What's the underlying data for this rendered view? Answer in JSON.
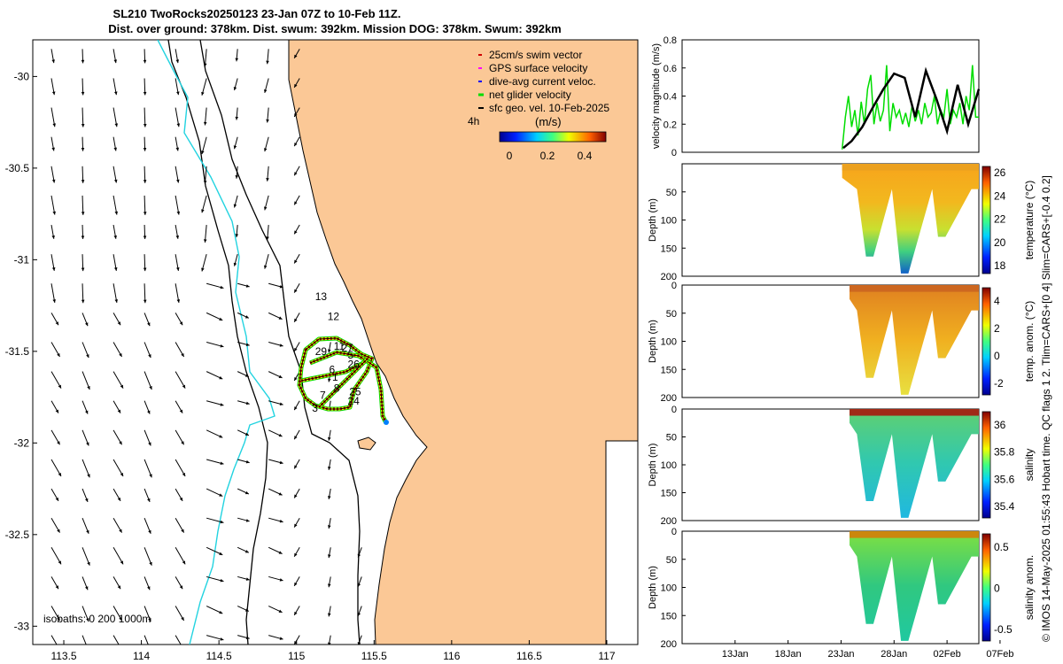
{
  "header": {
    "title_line1": "SL210 TwoRocks20250123 23-Jan 07Z to 10-Feb 11Z.",
    "title_line2": "Dist. over ground: 378km. Dist. swum: 392km. Mission DOG: 378km. Swum: 392km"
  },
  "colors": {
    "land": "#fbc896",
    "isobath": "#000000",
    "shelf": "#22d3e0",
    "track": "#c00000",
    "arrow": "#000000"
  },
  "chart_data": [
    {
      "type": "map",
      "title": "Glider track and surface geostrophic velocity",
      "xlim": [
        113.3,
        117.2
      ],
      "ylim": [
        -33.1,
        -29.8
      ],
      "xticks": [
        113.5,
        114,
        114.5,
        115,
        115.5,
        116,
        116.5,
        117
      ],
      "xtick_labels": [
        "113.5",
        "114",
        "114.5",
        "115",
        "115.5",
        "116",
        "116.5",
        "117"
      ],
      "yticks": [
        -30,
        -30.5,
        -31,
        -31.5,
        -32,
        -32.5,
        -33
      ],
      "ytick_labels": [
        "-30",
        "-30.5",
        "-31",
        "-31.5",
        "-32",
        "-32.5",
        "-33"
      ],
      "legend": [
        "25cm/s swim vector",
        "GPS surface velocity",
        "dive-avg current veloc.",
        "net glider velocity",
        "sfc geo. vel. 10-Feb-2025"
      ],
      "legend_colors": [
        "#d00000",
        "#ff00ff",
        "#0000ff",
        "#00dd00",
        "#000000"
      ],
      "legend_extra": "4h",
      "colorbar_label": "(m/s)",
      "colorbar_ticks": [
        "0",
        "0.2",
        "0.4"
      ],
      "isobaths_label": "isobaths: 0   200  1000m",
      "day_labels": [
        {
          "t": "13",
          "lon": 115.12,
          "lat": -31.22
        },
        {
          "t": "12",
          "lon": 115.2,
          "lat": -31.33
        },
        {
          "t": "29",
          "lon": 115.12,
          "lat": -31.52
        },
        {
          "t": "11",
          "lon": 115.24,
          "lat": -31.49
        },
        {
          "t": "27",
          "lon": 115.29,
          "lat": -31.5
        },
        {
          "t": "5",
          "lon": 115.33,
          "lat": -31.54
        },
        {
          "t": "26",
          "lon": 115.33,
          "lat": -31.59
        },
        {
          "t": "6",
          "lon": 115.21,
          "lat": -31.62
        },
        {
          "t": "1",
          "lon": 115.23,
          "lat": -31.66
        },
        {
          "t": "8",
          "lon": 115.24,
          "lat": -31.72
        },
        {
          "t": "25",
          "lon": 115.34,
          "lat": -31.74
        },
        {
          "t": "7",
          "lon": 115.15,
          "lat": -31.76
        },
        {
          "t": "24",
          "lon": 115.33,
          "lat": -31.79
        },
        {
          "t": "3",
          "lon": 115.1,
          "lat": -31.83
        }
      ]
    },
    {
      "type": "line",
      "ylabel": "velocity magnitude (m/s)",
      "xlim": [
        8,
        36
      ],
      "ylim": [
        0,
        0.8
      ],
      "yticks": [
        0,
        0.2,
        0.4,
        0.6,
        0.8
      ],
      "ytick_labels": [
        "0",
        "0.2",
        "0.4",
        "0.6",
        "0.8"
      ],
      "series": [
        {
          "name": "net glider velocity",
          "color": "#00dd00",
          "x": [
            23.1,
            23.4,
            23.7,
            24.0,
            24.3,
            24.6,
            24.9,
            25.2,
            25.5,
            25.8,
            26.1,
            26.4,
            26.7,
            27.0,
            27.3,
            27.6,
            27.9,
            28.2,
            28.5,
            28.8,
            29.1,
            29.4,
            29.7,
            30.0,
            30.3,
            30.6,
            30.9,
            31.2,
            31.5,
            31.8,
            32.1,
            32.4,
            32.7,
            33.0,
            33.3,
            33.6,
            33.9,
            34.2,
            34.5,
            34.8,
            35.1,
            35.4,
            35.7,
            36.0
          ],
          "y": [
            0.02,
            0.25,
            0.4,
            0.18,
            0.3,
            0.12,
            0.36,
            0.2,
            0.45,
            0.55,
            0.2,
            0.35,
            0.22,
            0.3,
            0.62,
            0.15,
            0.35,
            0.25,
            0.3,
            0.2,
            0.28,
            0.18,
            0.33,
            0.22,
            0.3,
            0.2,
            0.35,
            0.25,
            0.28,
            0.4,
            0.2,
            0.3,
            0.25,
            0.45,
            0.2,
            0.3,
            0.25,
            0.35,
            0.2,
            0.4,
            0.3,
            0.62,
            0.25,
            0.25
          ]
        },
        {
          "name": "sfc geo. vel.",
          "color": "#000000",
          "x": [
            23.2,
            24.0,
            25.0,
            26.0,
            27.0,
            28.0,
            29.0,
            30.0,
            31.0,
            32.0,
            33.0,
            34.0,
            35.0,
            36.0
          ],
          "y": [
            0.03,
            0.08,
            0.18,
            0.32,
            0.45,
            0.56,
            0.53,
            0.25,
            0.58,
            0.38,
            0.15,
            0.48,
            0.2,
            0.45
          ]
        }
      ]
    },
    {
      "type": "heatmap",
      "ylabel": "Depth (m)",
      "colorbar_label": "temperature (°C)",
      "ylim": [
        0,
        200
      ],
      "yticks": [
        0,
        50,
        100,
        150,
        200
      ],
      "ytick_labels": [
        "",
        "50",
        "100",
        "150",
        "200"
      ],
      "colorbar_ticks": [
        "18",
        "20",
        "22",
        "24",
        "26"
      ],
      "dives": [
        {
          "day": 25.7,
          "depth": 165
        },
        {
          "day": 28.9,
          "depth": 195
        },
        {
          "day": 32.5,
          "depth": 130
        }
      ]
    },
    {
      "type": "heatmap",
      "ylabel": "Depth (m)",
      "colorbar_label": "temp. anom. (°C)",
      "ylim": [
        0,
        200
      ],
      "yticks": [
        0,
        50,
        100,
        150,
        200
      ],
      "ytick_labels": [
        "0",
        "50",
        "100",
        "150",
        "200"
      ],
      "colorbar_ticks": [
        "4",
        "2",
        "0",
        "-2"
      ]
    },
    {
      "type": "heatmap",
      "ylabel": "Depth (m)",
      "colorbar_label": "salinity",
      "ylim": [
        0,
        200
      ],
      "yticks": [
        0,
        50,
        100,
        150,
        200
      ],
      "ytick_labels": [
        "0",
        "50",
        "100",
        "150",
        "200"
      ],
      "colorbar_ticks": [
        "36",
        "35.8",
        "35.6",
        "35.4"
      ]
    },
    {
      "type": "heatmap",
      "ylabel": "Depth (m)",
      "colorbar_label": "salinity anom.",
      "ylim": [
        0,
        200
      ],
      "yticks": [
        0,
        50,
        100,
        150,
        200
      ],
      "ytick_labels": [
        "0",
        "50",
        "100",
        "150",
        "200"
      ],
      "colorbar_ticks": [
        "0.5",
        "0",
        "-0.5"
      ],
      "xticks": [
        "13Jan",
        "18Jan",
        "23Jan",
        "28Jan",
        "02Feb",
        "07Feb"
      ]
    }
  ],
  "footer": {
    "side_text": "© IMOS 14-May-2025 01:55:43 Hobart time. QC flags 1  2. Tlim=CARS+[0 4] Slim=CARS+[-0.4 0.2]"
  }
}
